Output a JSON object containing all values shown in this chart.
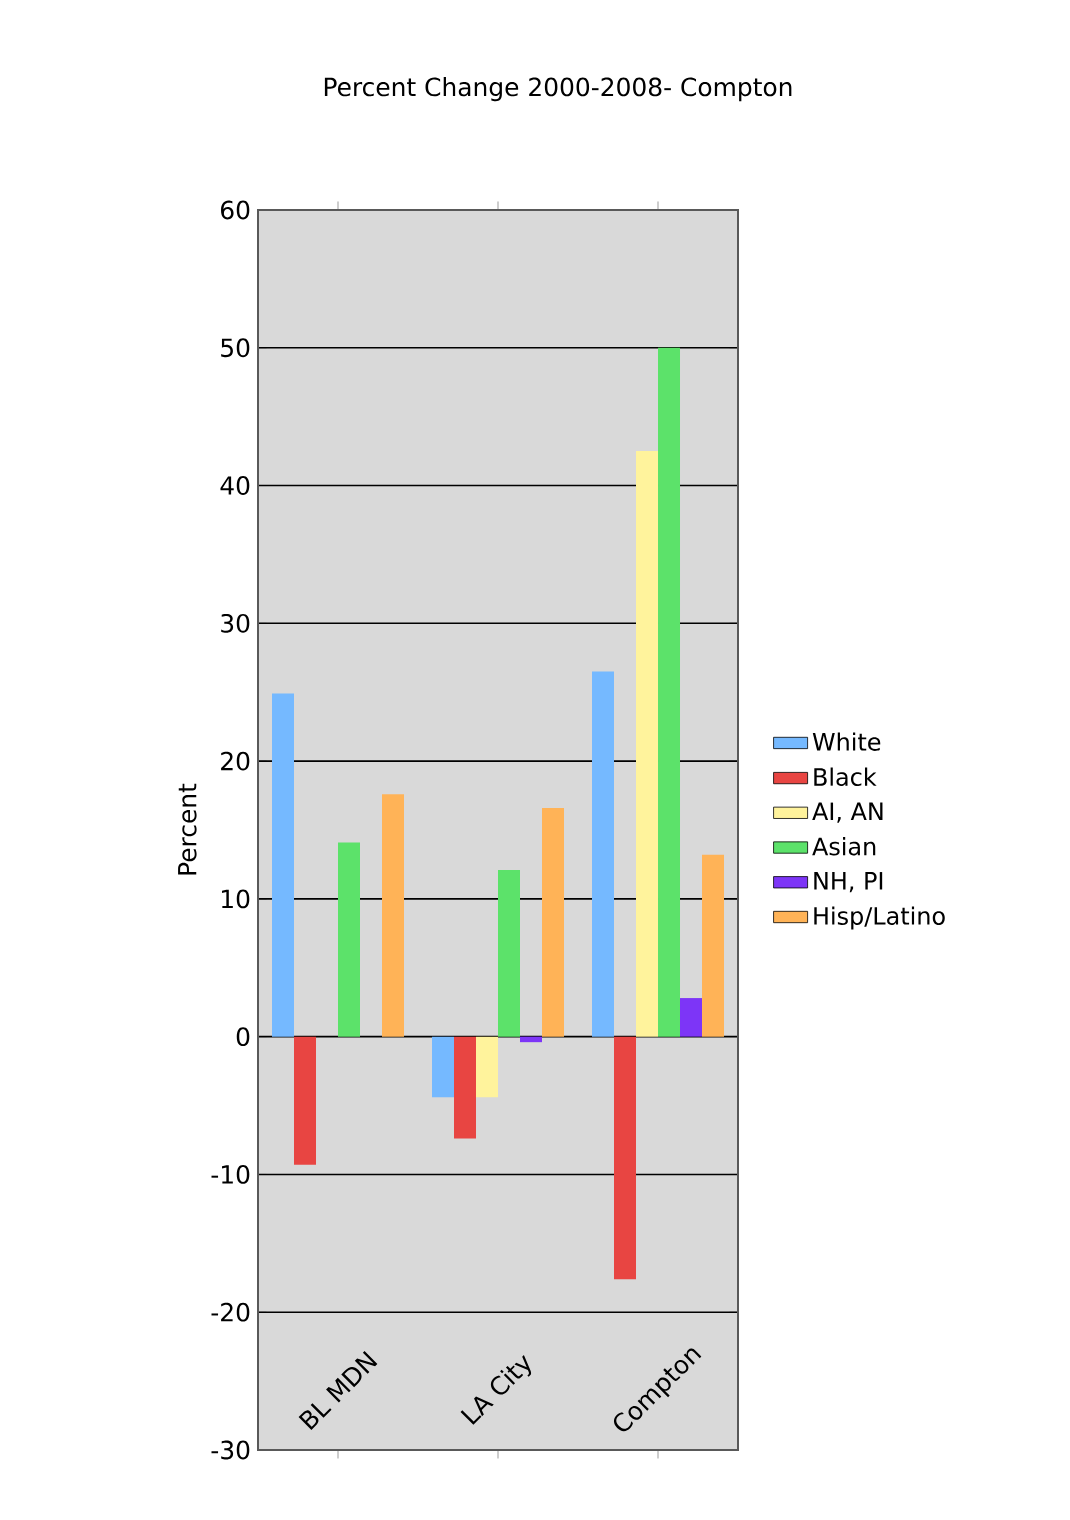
{
  "chart_data": {
    "type": "bar",
    "title": "Percent Change 2000-2008- Compton",
    "ylabel": "Percent",
    "categories": [
      "BL MDN",
      "LA City",
      "Compton"
    ],
    "series": [
      {
        "name": "White",
        "color": "#75b9ff",
        "values": [
          24.9,
          -4.4,
          26.5
        ]
      },
      {
        "name": "Black",
        "color": "#e84542",
        "values": [
          -9.3,
          -7.4,
          -17.6
        ]
      },
      {
        "name": "AI, AN",
        "color": "#fff39c",
        "values": [
          null,
          -4.4,
          42.5
        ]
      },
      {
        "name": "Asian",
        "color": "#5ce26a",
        "values": [
          14.1,
          12.1,
          50.0
        ]
      },
      {
        "name": "NH, PI",
        "color": "#7d35f7",
        "values": [
          null,
          -0.4,
          2.8
        ]
      },
      {
        "name": "Hisp/Latino",
        "color": "#ffb357",
        "values": [
          17.6,
          16.6,
          13.2
        ]
      }
    ],
    "ylim": [
      -30,
      60
    ],
    "yticks": [
      -30,
      -20,
      -10,
      0,
      10,
      20,
      30,
      40,
      50,
      60
    ],
    "grid": "y",
    "legend": "right"
  }
}
